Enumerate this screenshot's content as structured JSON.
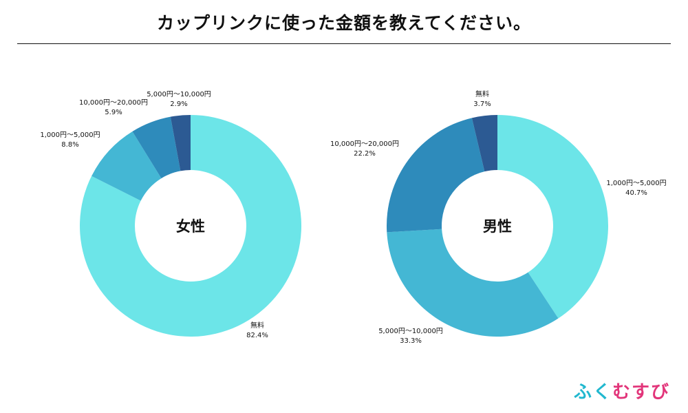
{
  "title": "カップリンクに使った金額を教えてください。",
  "brand": {
    "text": "ふくむすび",
    "colors": [
      "#21b8cf",
      "#21b8cf",
      "#e2357a",
      "#e2357a",
      "#e2357a"
    ]
  },
  "chart_data": [
    {
      "type": "pie",
      "donut": true,
      "center_label": "女性",
      "start": "top",
      "direction": "clockwise",
      "slices": [
        {
          "name": "無料",
          "value": 82.4,
          "label": "82.4%",
          "color": "#6ce5e8"
        },
        {
          "name": "1,000円〜5,000円",
          "value": 8.8,
          "label": "8.8%",
          "color": "#44b7d4"
        },
        {
          "name": "10,000円〜20,000円",
          "value": 5.9,
          "label": "5.9%",
          "color": "#2e8bbb"
        },
        {
          "name": "5,000円〜10,000円",
          "value": 2.9,
          "label": "2.9%",
          "color": "#2c5a93"
        }
      ]
    },
    {
      "type": "pie",
      "donut": true,
      "center_label": "男性",
      "start": "top",
      "direction": "clockwise",
      "slices": [
        {
          "name": "1,000円〜5,000円",
          "value": 40.7,
          "label": "40.7%",
          "color": "#6ce5e8"
        },
        {
          "name": "5,000円〜10,000円",
          "value": 33.3,
          "label": "33.3%",
          "color": "#44b7d4"
        },
        {
          "name": "10,000円〜20,000円",
          "value": 22.2,
          "label": "22.2%",
          "color": "#2e8bbb"
        },
        {
          "name": "無料",
          "value": 3.7,
          "label": "3.7%",
          "color": "#2c5a93"
        }
      ]
    }
  ]
}
